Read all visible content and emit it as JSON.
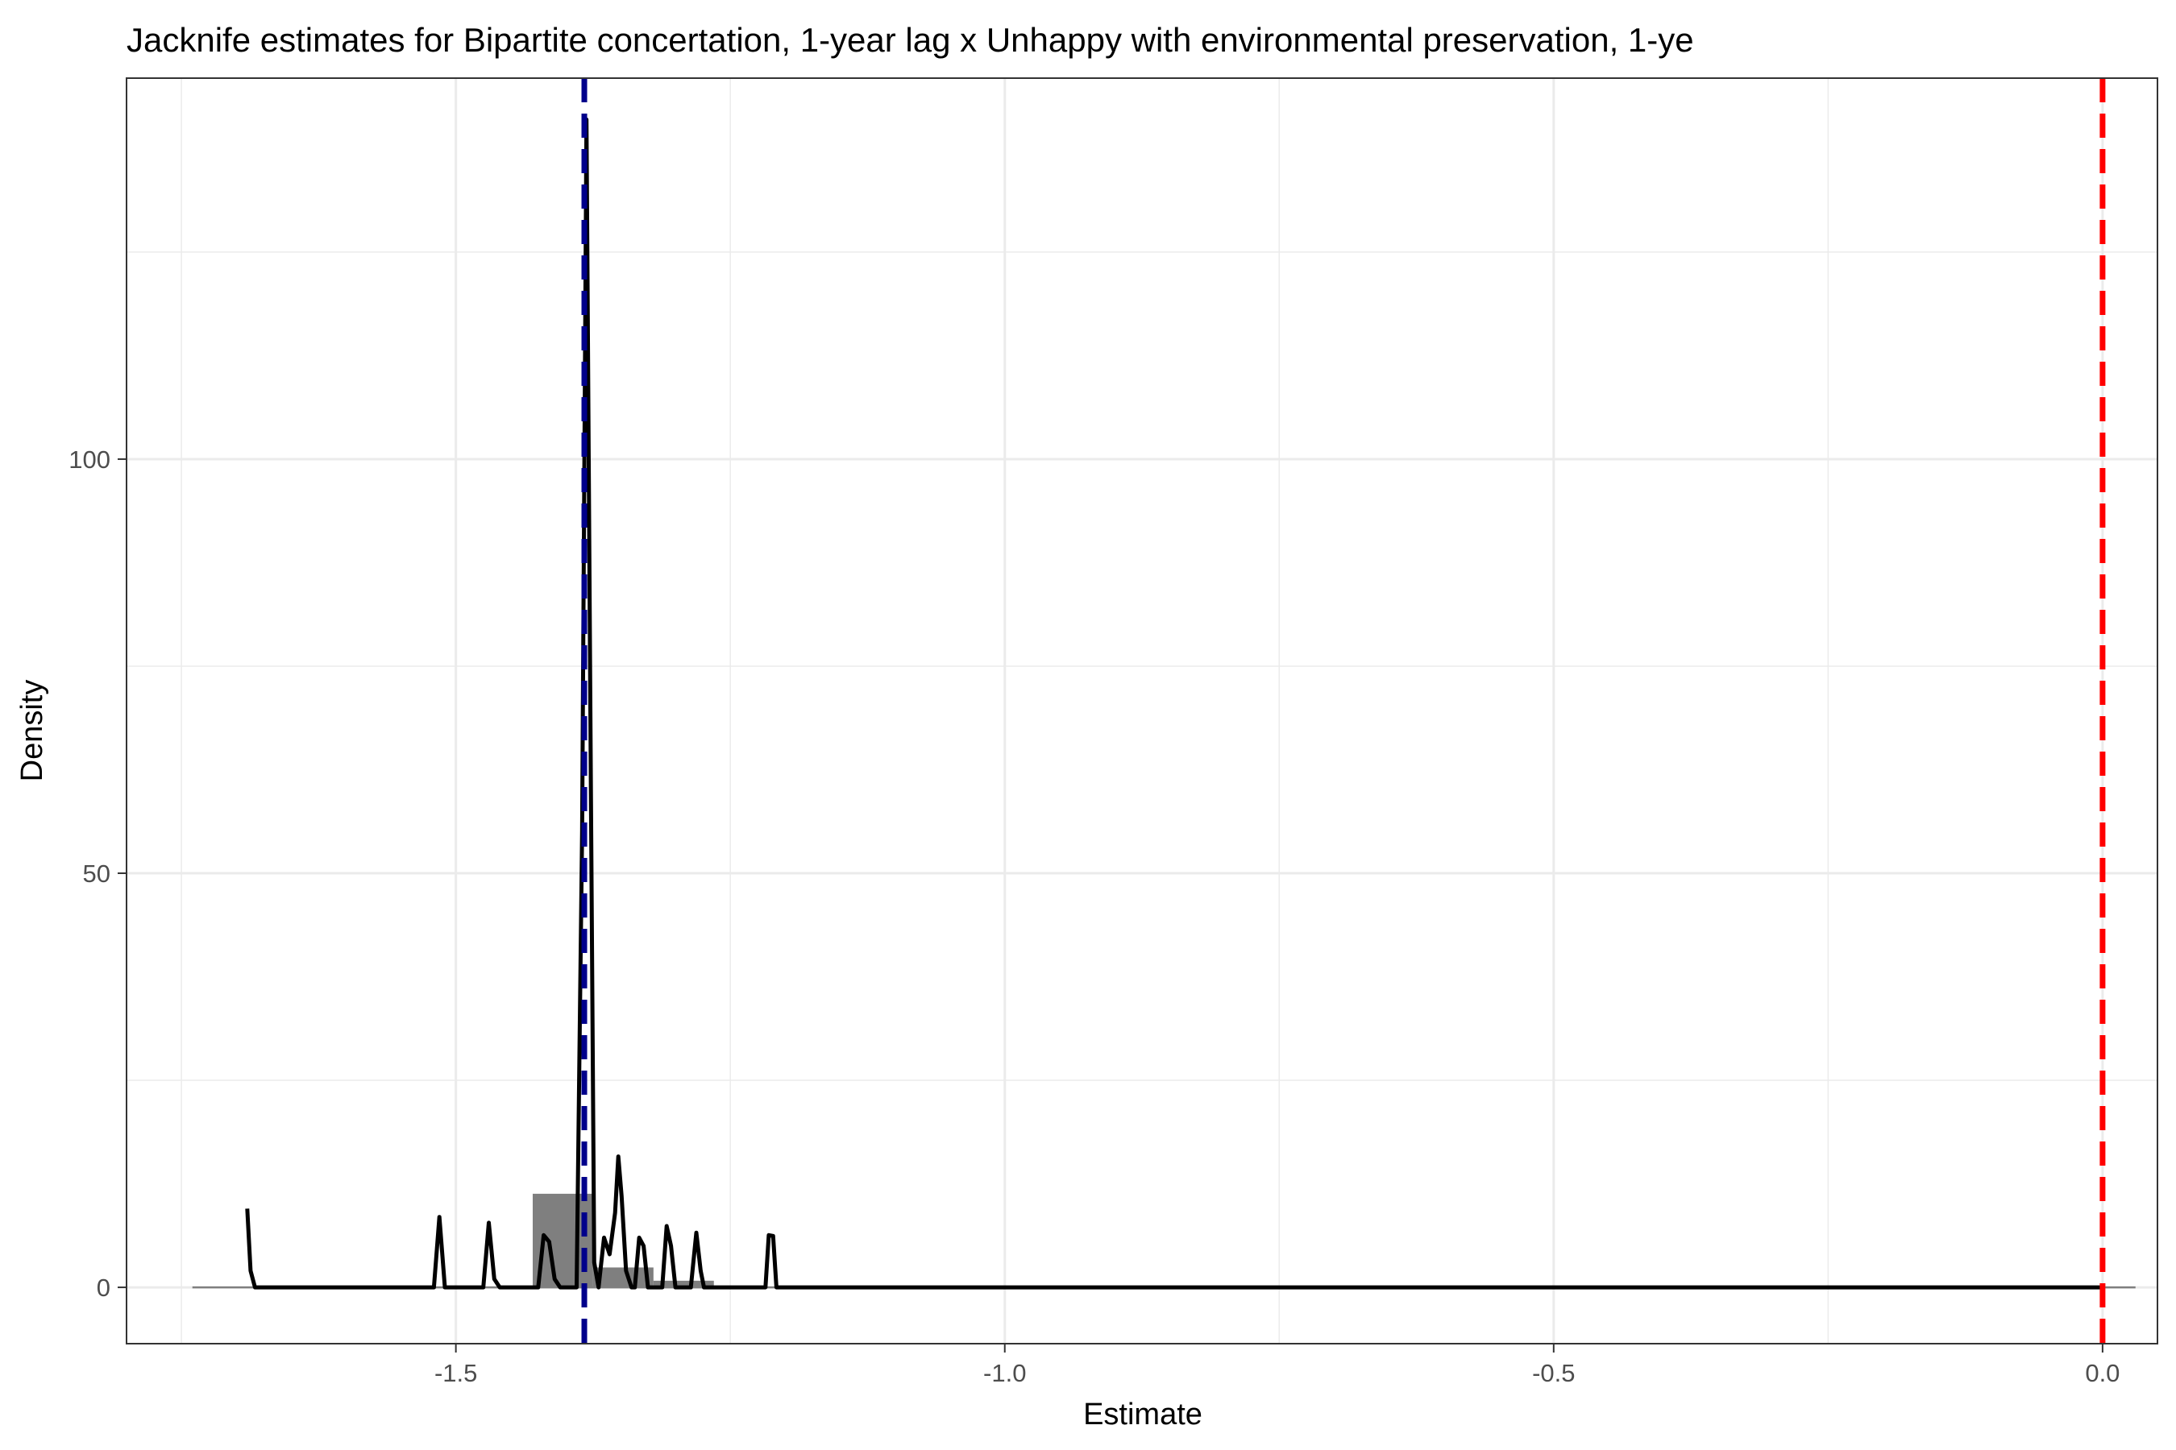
{
  "chart_data": {
    "type": "histogram-density",
    "title": "Jacknife estimates for Bipartite concertation, 1-year lag x Unhappy with environmental preservation, 1-ye",
    "xlabel": "Estimate",
    "ylabel": "Density",
    "xlim": [
      -1.8,
      0.05
    ],
    "ylim": [
      -6.8,
      146
    ],
    "x_ticks": [
      {
        "value": -1.5,
        "label": "-1.5"
      },
      {
        "value": -1.0,
        "label": "-1.0"
      },
      {
        "value": -0.5,
        "label": "-0.5"
      },
      {
        "value": 0.0,
        "label": "0.0"
      }
    ],
    "x_minor": [
      -1.75,
      -1.25,
      -0.75,
      -0.25
    ],
    "y_ticks": [
      {
        "value": 0,
        "label": "0"
      },
      {
        "value": 50,
        "label": "50"
      },
      {
        "value": 100,
        "label": "100"
      }
    ],
    "y_minor": [
      25,
      75,
      125
    ],
    "histogram": {
      "color": "#7f7f7f",
      "baseline_range": [
        -1.74,
        0.03
      ],
      "bars": [
        {
          "x0": -1.43,
          "x1": -1.375,
          "height": 11.3
        },
        {
          "x0": -1.375,
          "x1": -1.32,
          "height": 2.4
        },
        {
          "x0": -1.32,
          "x1": -1.265,
          "height": 0.8
        }
      ]
    },
    "density": {
      "color": "#000000",
      "points": [
        [
          -1.69,
          9.5
        ],
        [
          -1.687,
          2
        ],
        [
          -1.683,
          0
        ],
        [
          -1.52,
          0
        ],
        [
          -1.515,
          8.5
        ],
        [
          -1.51,
          0
        ],
        [
          -1.475,
          0
        ],
        [
          -1.47,
          7.8
        ],
        [
          -1.465,
          1
        ],
        [
          -1.46,
          0
        ],
        [
          -1.425,
          0
        ],
        [
          -1.42,
          6.3
        ],
        [
          -1.415,
          5.5
        ],
        [
          -1.41,
          1
        ],
        [
          -1.405,
          0
        ],
        [
          -1.39,
          0
        ],
        [
          -1.385,
          55
        ],
        [
          -1.381,
          141
        ],
        [
          -1.377,
          60
        ],
        [
          -1.374,
          3
        ],
        [
          -1.37,
          0
        ],
        [
          -1.365,
          6
        ],
        [
          -1.36,
          4
        ],
        [
          -1.355,
          9
        ],
        [
          -1.352,
          15.8
        ],
        [
          -1.349,
          11
        ],
        [
          -1.345,
          2
        ],
        [
          -1.34,
          0
        ],
        [
          -1.337,
          0
        ],
        [
          -1.333,
          6
        ],
        [
          -1.329,
          5
        ],
        [
          -1.325,
          0
        ],
        [
          -1.312,
          0
        ],
        [
          -1.308,
          7.4
        ],
        [
          -1.304,
          5
        ],
        [
          -1.3,
          0
        ],
        [
          -1.286,
          0
        ],
        [
          -1.281,
          6.6
        ],
        [
          -1.277,
          2
        ],
        [
          -1.274,
          0
        ],
        [
          -1.218,
          0
        ],
        [
          -1.215,
          6.3
        ],
        [
          -1.211,
          6.2
        ],
        [
          -1.208,
          0
        ],
        [
          -0.001,
          0
        ]
      ]
    },
    "reference_lines": [
      {
        "name": "jackknife-mean",
        "x": -1.383,
        "color": "#00008b",
        "dashed": true
      },
      {
        "name": "zero",
        "x": 0.0,
        "color": "#ff0000",
        "dashed": true
      }
    ]
  }
}
